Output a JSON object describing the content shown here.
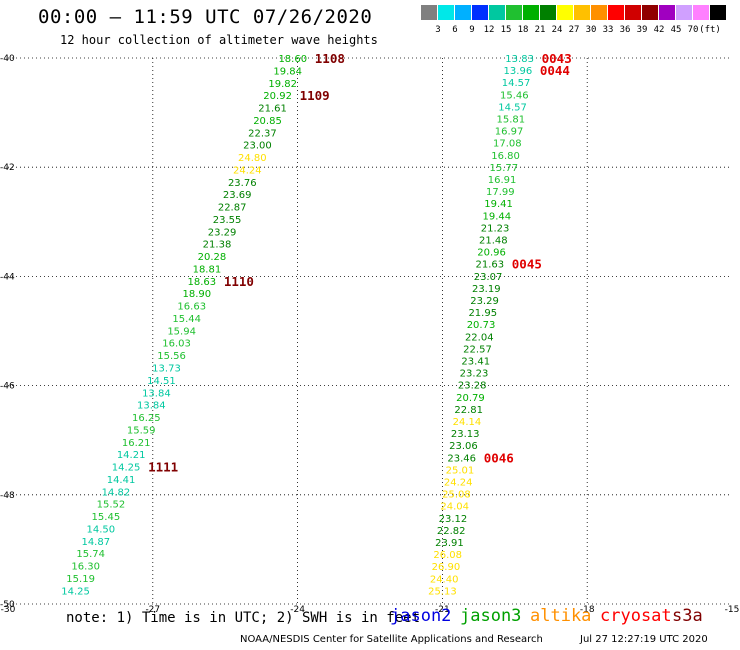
{
  "header": {
    "title": "00:00 – 11:59 UTC 07/26/2020",
    "subtitle": "12 hour collection of altimeter wave heights"
  },
  "legend": {
    "unit_label": "(ft)",
    "bins": [
      {
        "label": "",
        "color": "#808080"
      },
      {
        "label": "3",
        "color": "#00e8e8"
      },
      {
        "label": "6",
        "color": "#00b0ff"
      },
      {
        "label": "9",
        "color": "#0030ff"
      },
      {
        "label": "12",
        "color": "#00c8a0"
      },
      {
        "label": "15",
        "color": "#20c030"
      },
      {
        "label": "18",
        "color": "#00b000"
      },
      {
        "label": "21",
        "color": "#008000"
      },
      {
        "label": "24",
        "color": "#ffff00"
      },
      {
        "label": "27",
        "color": "#ffc000"
      },
      {
        "label": "30",
        "color": "#ff9000"
      },
      {
        "label": "33",
        "color": "#ff0000"
      },
      {
        "label": "36",
        "color": "#d00000"
      },
      {
        "label": "39",
        "color": "#900000"
      },
      {
        "label": "42",
        "color": "#a000c0"
      },
      {
        "label": "45",
        "color": "#d0a0ff"
      },
      {
        "label": "70",
        "color": "#ff80ff"
      },
      {
        "label": "",
        "color": "#000000"
      }
    ]
  },
  "map": {
    "lon_range": [
      -30,
      -15
    ],
    "lat_range": [
      -50,
      -40
    ],
    "lon_ticks": [
      "-30",
      "-27",
      "-24",
      "-21",
      "-18",
      "-15"
    ],
    "lat_ticks": [
      "-50",
      "-48",
      "-46",
      "-44",
      "-42",
      "-40"
    ],
    "grid": true,
    "tracks": [
      {
        "name": "west-track",
        "start": [
          -24.1,
          -40.0
        ],
        "end": [
          -28.6,
          -49.75
        ],
        "values": [
          "18.60",
          "19.84",
          "19.82",
          "20.92",
          "21.61",
          "20.85",
          "22.37",
          "23.00",
          "24.80",
          "24.24",
          "23.76",
          "23.69",
          "22.87",
          "23.55",
          "23.29",
          "21.38",
          "20.28",
          "18.81",
          "18.63",
          "18.90",
          "16.63",
          "15.44",
          "15.94",
          "16.03",
          "15.56",
          "13.73",
          "14.51",
          "13.84",
          "13.84",
          "16.25",
          "15.59",
          "16.21",
          "14.21",
          "14.25",
          "14.41",
          "14.82",
          "15.52",
          "15.45",
          "14.50",
          "14.87",
          "15.74",
          "16.30",
          "15.19",
          "14.25"
        ],
        "times": [
          {
            "label": "1108",
            "index": 0
          },
          {
            "label": "1109",
            "index": 3
          },
          {
            "label": "1110",
            "index": 18
          },
          {
            "label": "1111",
            "index": 33
          }
        ]
      },
      {
        "name": "east-track",
        "start": [
          -19.4,
          -40.0
        ],
        "end": [
          -21.0,
          -49.75
        ],
        "values": [
          "13.83",
          "13.96",
          "14.57",
          "15.46",
          "14.57",
          "15.81",
          "16.97",
          "17.08",
          "16.80",
          "15.77",
          "16.91",
          "17.99",
          "19.41",
          "19.44",
          "21.23",
          "21.48",
          "20.96",
          "21.63",
          "23.07",
          "23.19",
          "23.29",
          "21.95",
          "20.73",
          "22.04",
          "22.57",
          "23.41",
          "23.23",
          "23.28",
          "20.79",
          "22.81",
          "24.14",
          "23.13",
          "23.06",
          "23.46",
          "25.01",
          "24.24",
          "25.08",
          "24.04",
          "23.12",
          "22.82",
          "23.91",
          "26.08",
          "26.90",
          "24.40",
          "25.13"
        ],
        "times": [
          {
            "label": "0043",
            "index": 0
          },
          {
            "label": "0044",
            "index": 1
          },
          {
            "label": "0045",
            "index": 17
          },
          {
            "label": "0046",
            "index": 33
          }
        ]
      }
    ]
  },
  "footer": {
    "note": "note:  1) Time is in UTC;  2) SWH is in feet",
    "satellites": [
      {
        "name": "jason2",
        "color": "#0000e0"
      },
      {
        "name": "jason3",
        "color": "#00a000"
      },
      {
        "name": "altika",
        "color": "#ff9000"
      },
      {
        "name": "cryosat",
        "color": "#ff0000"
      },
      {
        "name": "s3a",
        "color": "#800000"
      }
    ],
    "credit": "NOAA/NESDIS Center for Satellite Applications and Research",
    "timestamp": "Jul 27 12:27:19 UTC 2020"
  }
}
